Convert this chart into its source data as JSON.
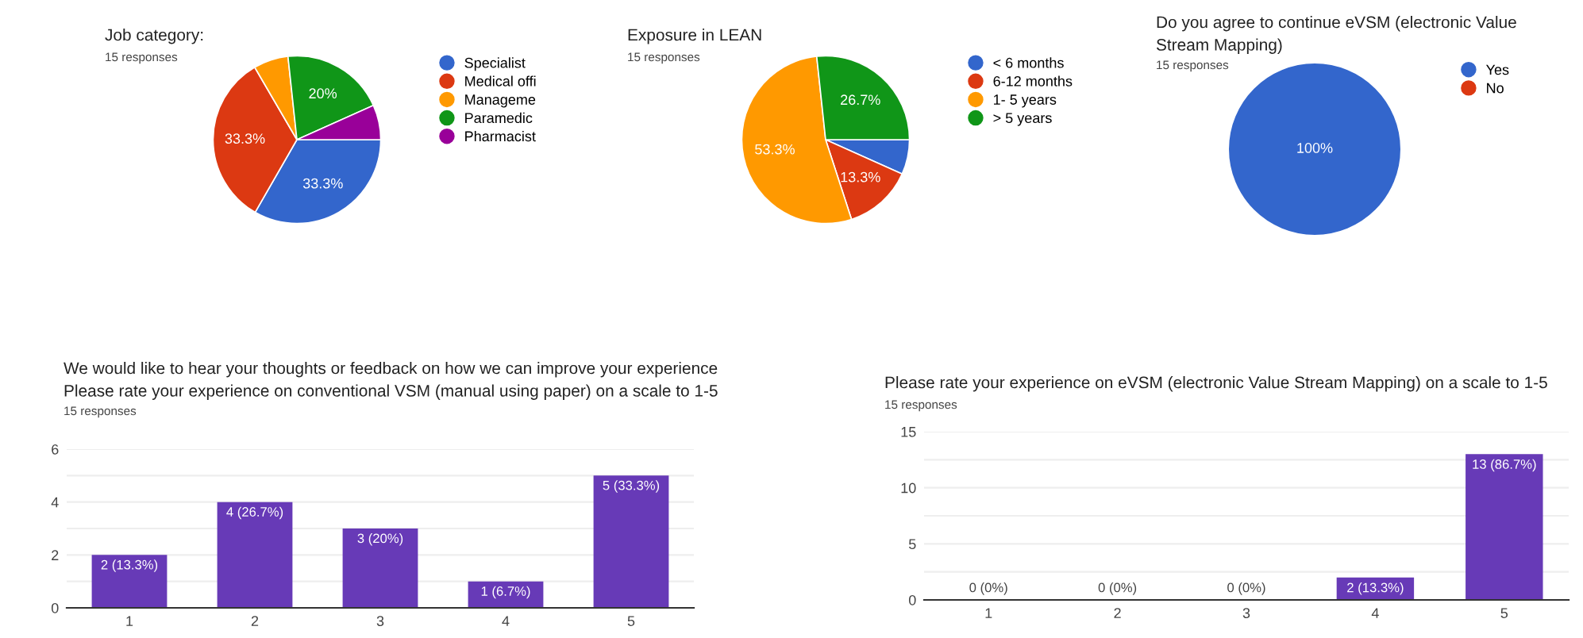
{
  "chart_data": [
    {
      "type": "pie",
      "title": "Job category:",
      "subtitle": "15 responses",
      "categories": [
        "Specialist",
        "Medical offi",
        "Manageme",
        "Paramedic",
        "Pharmacist"
      ],
      "values": [
        33.3,
        33.3,
        6.7,
        20,
        6.7
      ],
      "colors": [
        "#3366cc",
        "#dc3912",
        "#ff9900",
        "#109618",
        "#990099"
      ],
      "value_labels": [
        "33.3%",
        "33.3%",
        null,
        "20%",
        null
      ],
      "legend": "right"
    },
    {
      "type": "pie",
      "title": "Exposure in LEAN",
      "subtitle": "15 responses",
      "categories": [
        "< 6 months",
        "6-12 months",
        "1- 5 years",
        "> 5 years"
      ],
      "values": [
        6.7,
        13.3,
        53.3,
        26.7
      ],
      "colors": [
        "#3366cc",
        "#dc3912",
        "#ff9900",
        "#109618"
      ],
      "value_labels": [
        null,
        "13.3%",
        "53.3%",
        "26.7%"
      ],
      "legend": "right"
    },
    {
      "type": "pie",
      "title": "Do you agree to continue eVSM (electronic Value Stream Mapping)",
      "subtitle": "15 responses",
      "categories": [
        "Yes",
        "No"
      ],
      "values": [
        100,
        0
      ],
      "colors": [
        "#3366cc",
        "#dc3912"
      ],
      "value_labels": [
        "100%",
        null
      ],
      "legend": "right"
    },
    {
      "type": "bar",
      "title": "We would like to hear your thoughts or feedback on how we can improve your experience   Please rate your experience on conventional VSM (manual using paper) on a scale to 1-5",
      "subtitle": "15 responses",
      "categories": [
        "1",
        "2",
        "3",
        "4",
        "5"
      ],
      "values": [
        2,
        4,
        3,
        1,
        5
      ],
      "color": "#673ab7",
      "value_labels": [
        "2 (13.3%)",
        "4 (26.7%)",
        "3 (20%)",
        "1 (6.7%)",
        "5 (33.3%)"
      ],
      "ylim": [
        0,
        6
      ],
      "yticks": [
        0,
        {
          "value": 1,
          "label": null
        },
        2,
        {
          "value": 3,
          "label": null
        },
        4,
        {
          "value": 5,
          "label": null
        },
        6
      ],
      "grid": "y"
    },
    {
      "type": "bar",
      "title": "Please rate your experience on eVSM (electronic Value Stream Mapping) on a scale to 1-5",
      "subtitle": "15 responses",
      "categories": [
        "1",
        "2",
        "3",
        "4",
        "5"
      ],
      "values": [
        0,
        0,
        0,
        2,
        13
      ],
      "color": "#673ab7",
      "value_labels": [
        "0 (0%)",
        "0 (0%)",
        "0 (0%)",
        "2 (13.3%)",
        "13 (86.7%)"
      ],
      "ylim": [
        0,
        15
      ],
      "yticks": [
        0,
        {
          "value": 2.5,
          "label": null
        },
        5,
        {
          "value": 7.5,
          "label": null
        },
        10,
        {
          "value": 12.5,
          "label": null
        },
        15
      ],
      "grid": "y"
    }
  ]
}
